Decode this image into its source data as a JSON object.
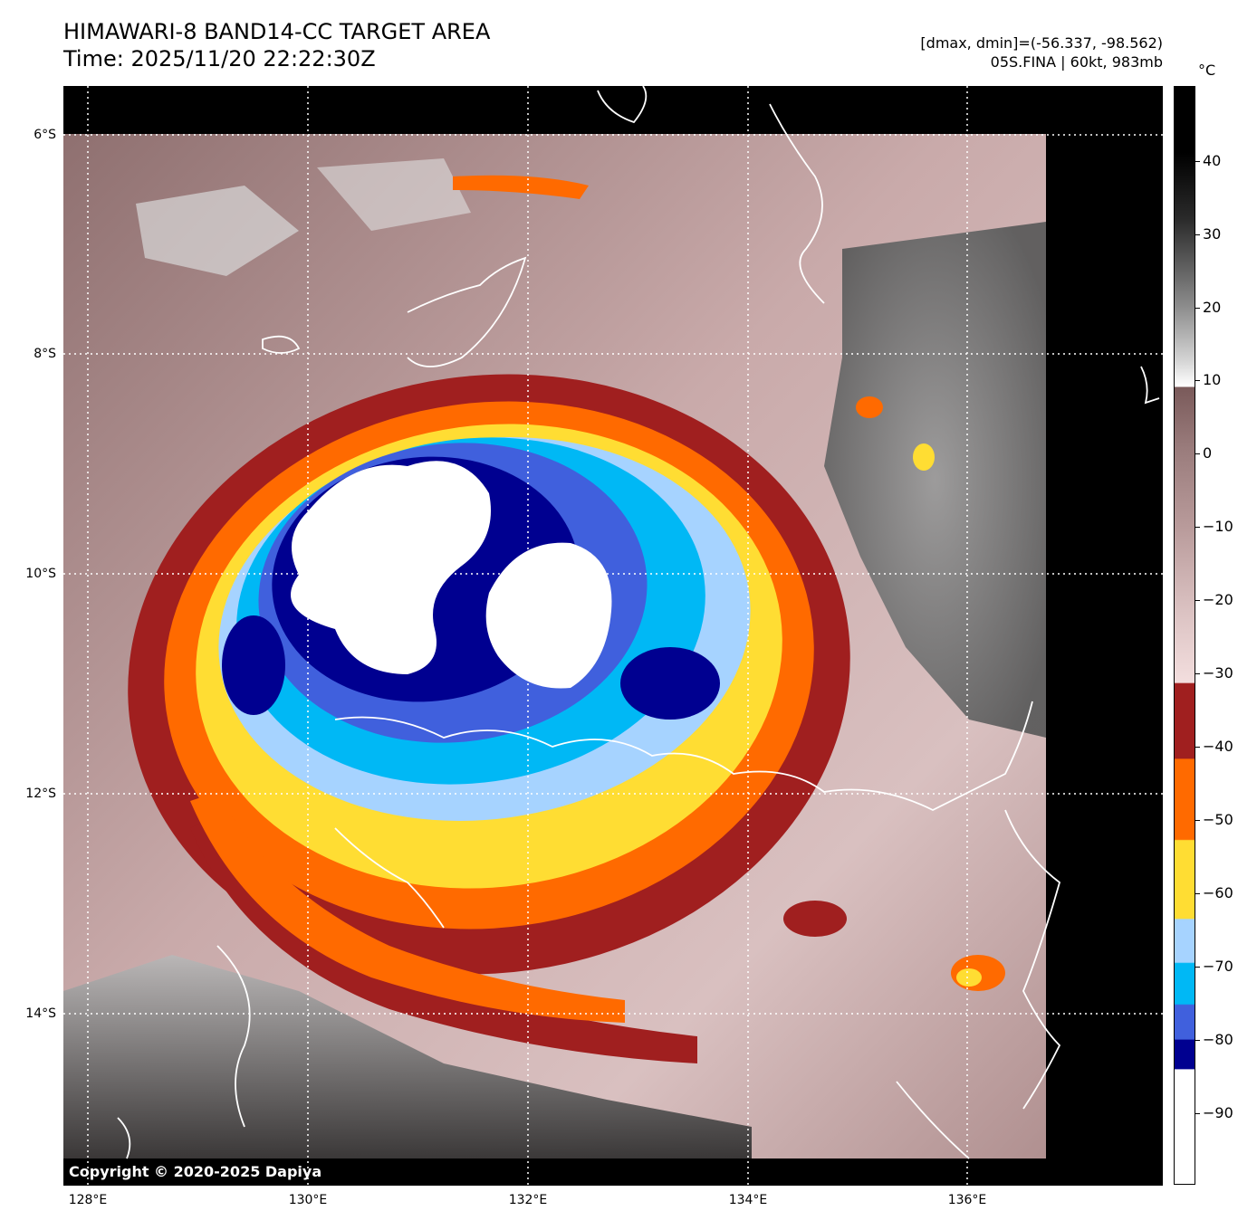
{
  "title": {
    "line1": "HIMAWARI-8 BAND14-CC TARGET AREA",
    "line2": "Time: 2025/11/20 22:22:30Z"
  },
  "info": {
    "range": "[dmax, dmin]=(-56.337, -98.562)",
    "storm": "05S.FINA | 60kt, 983mb"
  },
  "copyright": "Copyright © 2020-2025 Dapiya",
  "lat_labels": [
    "6°S",
    "8°S",
    "10°S",
    "12°S",
    "14°S"
  ],
  "lon_labels": [
    "128°E",
    "130°E",
    "132°E",
    "134°E",
    "136°E"
  ],
  "colorbar": {
    "unit": "°C",
    "ticks": [
      "40",
      "30",
      "20",
      "10",
      "0",
      "−10",
      "−20",
      "−30",
      "−40",
      "−50",
      "−60",
      "−70",
      "−80",
      "−90"
    ],
    "colors": {
      "warm_black": "#000000",
      "gray": "#8c8c8c",
      "mauve": "#9a7c7c",
      "pink": "#f3dede",
      "dark_red": "#a01f1f",
      "orange": "#ff6a00",
      "yellow": "#ffdd33",
      "light_blue": "#a6d3ff",
      "cyan": "#00b8f5",
      "blue": "#4060dd",
      "navy": "#000090",
      "white": "#ffffff"
    }
  }
}
